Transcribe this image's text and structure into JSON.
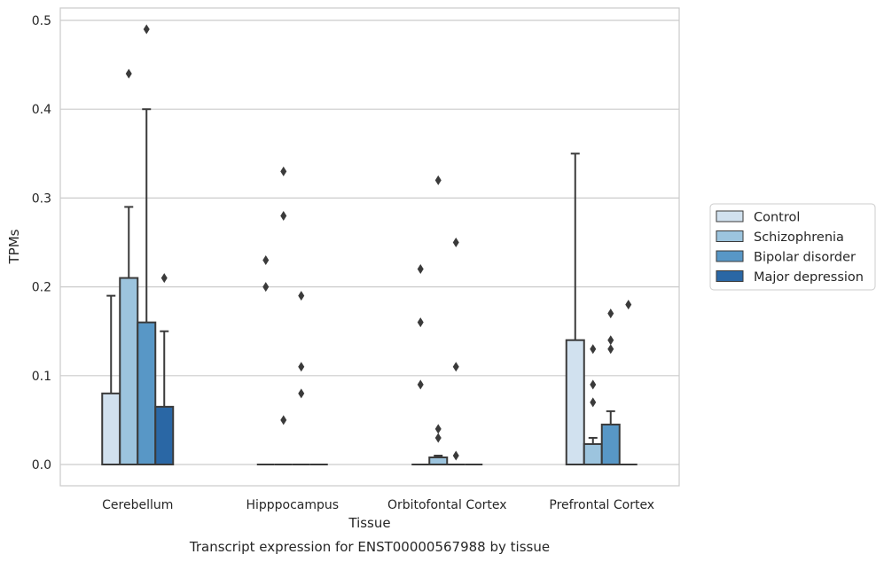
{
  "chart_data": {
    "type": "bar",
    "xlabel": "Tissue",
    "ylabel": "TPMs",
    "caption": "Transcript expression for ENST00000567988 by tissue",
    "ylim": [
      -0.023,
      0.515
    ],
    "yticks": [
      "0.0",
      "0.1",
      "0.2",
      "0.3",
      "0.4",
      "0.5"
    ],
    "grid": "horizontal",
    "legend_position": "right",
    "categories": [
      "Cerebellum",
      "Hipppocampus",
      "Orbitofontal Cortex",
      "Prefrontal Cortex"
    ],
    "series": [
      {
        "name": "Control",
        "color": "#d1e1ef",
        "values": [
          0.08,
          0.0,
          0.0,
          0.14
        ],
        "whisker_top": [
          0.19,
          null,
          null,
          0.35
        ],
        "outliers": [
          [],
          [
            0.23,
            0.2
          ],
          [
            0.22,
            0.16,
            0.09
          ],
          []
        ]
      },
      {
        "name": "Schizophrenia",
        "color": "#9cc4de",
        "values": [
          0.21,
          0.0,
          0.008,
          0.023
        ],
        "whisker_top": [
          0.29,
          null,
          0.01,
          0.03
        ],
        "outliers": [
          [
            0.44
          ],
          [
            0.33,
            0.28,
            0.05
          ],
          [
            0.32,
            0.04,
            0.03
          ],
          [
            0.13,
            0.09,
            0.07
          ]
        ]
      },
      {
        "name": "Bipolar disorder",
        "color": "#5897c6",
        "values": [
          0.16,
          0.0,
          0.0,
          0.045
        ],
        "whisker_top": [
          0.4,
          null,
          null,
          0.06
        ],
        "outliers": [
          [
            0.49
          ],
          [
            0.19,
            0.11,
            0.08
          ],
          [
            0.25,
            0.11,
            0.01
          ],
          [
            0.17,
            0.14,
            0.13
          ]
        ]
      },
      {
        "name": "Major depression",
        "color": "#2a67a5",
        "values": [
          0.065,
          0.0,
          0.0,
          0.0
        ],
        "whisker_top": [
          0.15,
          null,
          null,
          null
        ],
        "outliers": [
          [
            0.21
          ],
          [],
          [],
          [
            0.18
          ]
        ]
      }
    ]
  }
}
